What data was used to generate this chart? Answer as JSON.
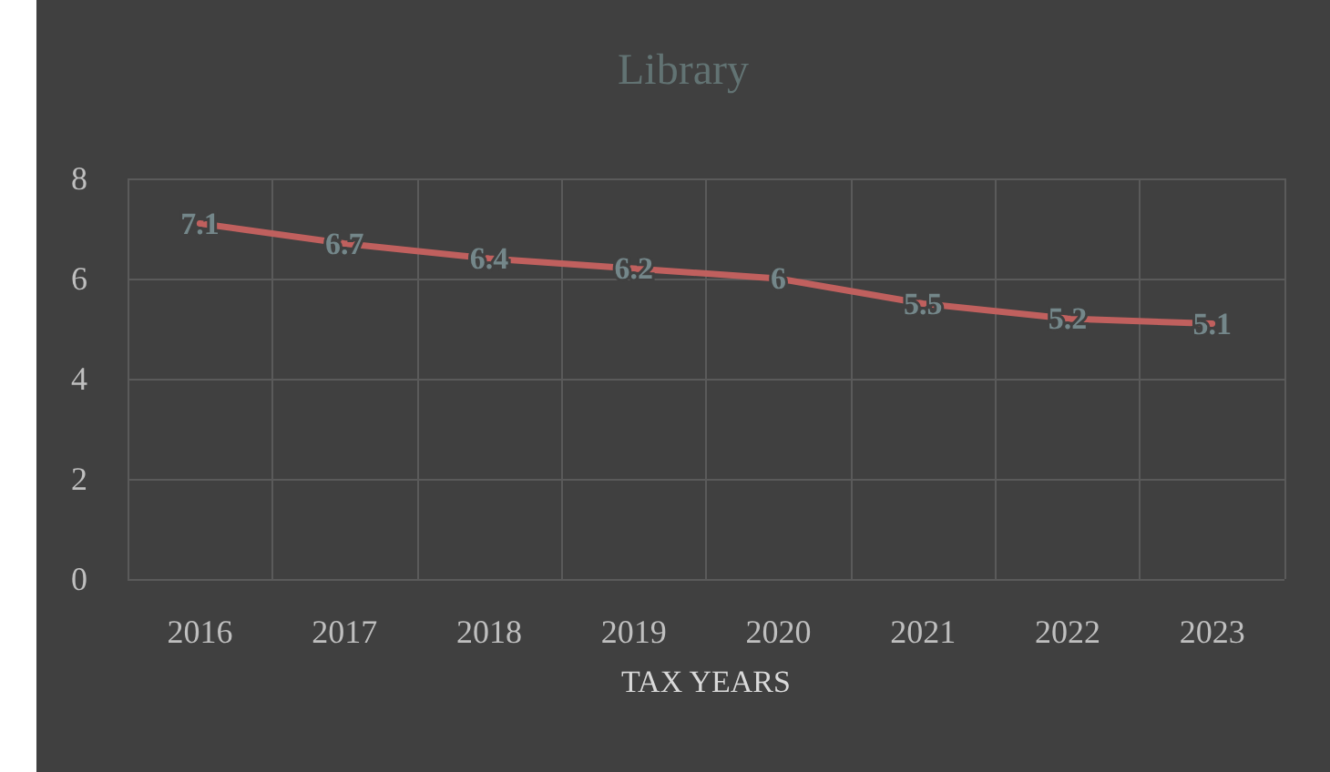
{
  "chart_data": {
    "type": "line",
    "title": "Library",
    "xlabel": "TAX YEARS",
    "categories": [
      "2016",
      "2017",
      "2018",
      "2019",
      "2020",
      "2021",
      "2022",
      "2023"
    ],
    "series": [
      {
        "color": "#c0605e",
        "values": [
          7.1,
          6.7,
          6.4,
          6.2,
          6,
          5.5,
          5.2,
          5.1
        ]
      }
    ],
    "ylim": [
      0,
      8
    ],
    "yticks": [
      0,
      2,
      4,
      6,
      8
    ],
    "grid": true,
    "data_labels": true,
    "marker": "none",
    "line_style": "solid"
  }
}
